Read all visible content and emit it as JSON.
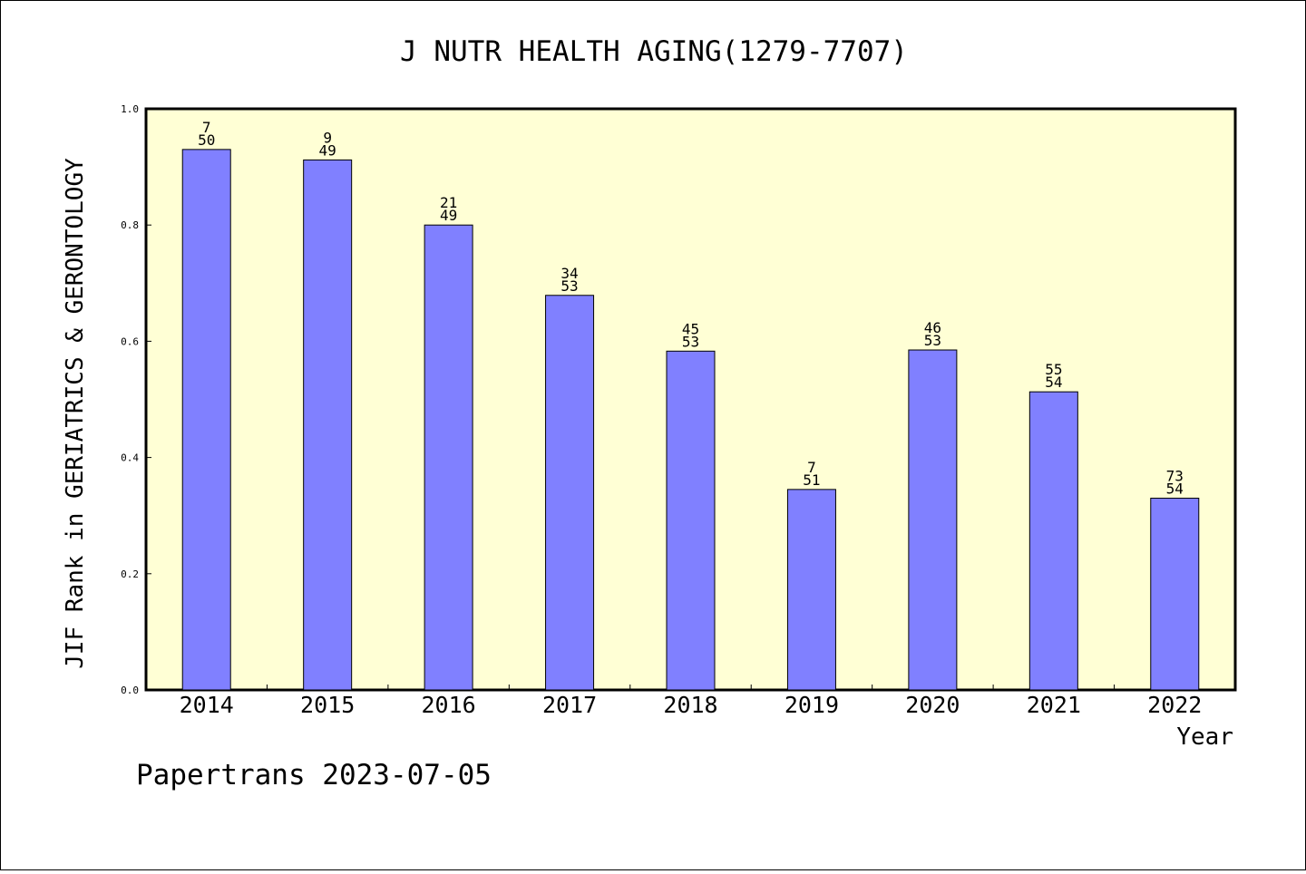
{
  "chart_data": {
    "type": "bar",
    "title": "J NUTR HEALTH AGING(1279-7707)",
    "xlabel": "Year",
    "ylabel": "JIF Rank in GERIATRICS & GERONTOLOGY",
    "ylim": [
      0,
      1.0
    ],
    "yticks": [
      "0.0",
      "0.2",
      "0.4",
      "0.6",
      "0.8",
      "1.0"
    ],
    "grid": false,
    "categories": [
      "2014",
      "2015",
      "2016",
      "2017",
      "2018",
      "2019",
      "2020",
      "2021",
      "2022"
    ],
    "values": [
      0.93,
      0.912,
      0.8,
      0.679,
      0.583,
      0.345,
      0.585,
      0.513,
      0.33
    ],
    "label_top": [
      "7",
      "9",
      "21",
      "34",
      "45",
      "7",
      "46",
      "55",
      "73"
    ],
    "label_bottom": [
      "50",
      "49",
      "49",
      "53",
      "53",
      "51",
      "53",
      "54",
      "54"
    ],
    "colors": {
      "bar": "#8080ff",
      "plot_bg": "#ffffd5",
      "axis": "#000000"
    }
  },
  "footer": "Papertrans 2023-07-05"
}
